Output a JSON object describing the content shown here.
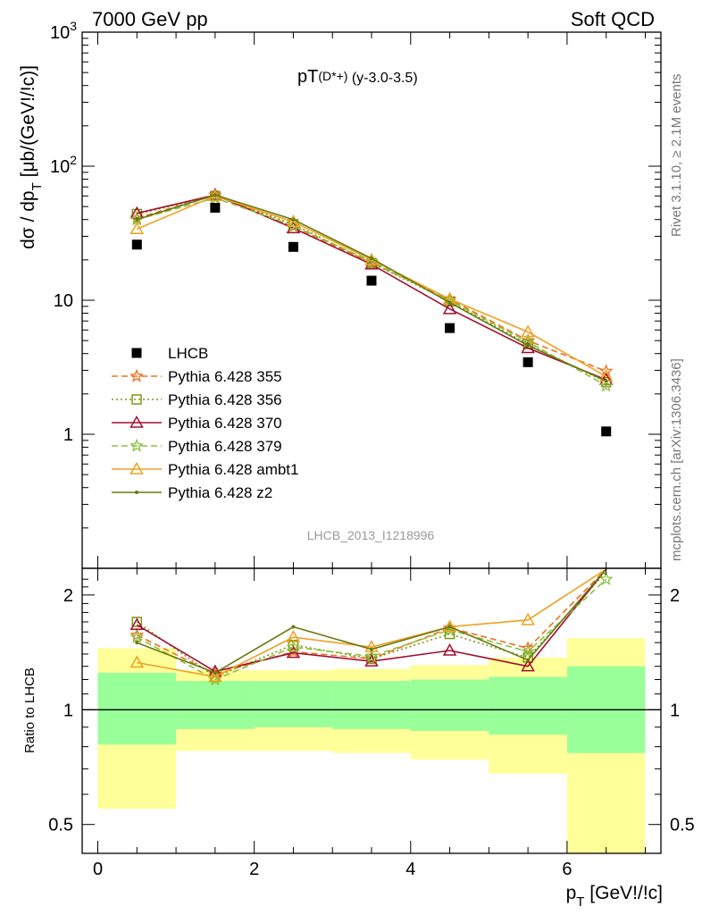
{
  "header": {
    "left": "7000 GeV pp",
    "right": "Soft QCD"
  },
  "side_labels": {
    "rivet": "Rivet 3.1.10, ≥ 2.1M events",
    "site": "mcplots.cern.ch [arXiv:1306.3436]"
  },
  "chart_data": [
    {
      "type": "scatter",
      "panel": "main",
      "title_main": "pT",
      "title_sub": "(D*+)",
      "title_tail": "(y-3.0-3.5)",
      "ylabel_main": "dσ / dp",
      "ylabel_sub": "T",
      "ylabel_tail": " [μb/(GeV!/!c)]",
      "yscale": "log",
      "ylim": [
        0.1,
        1000
      ],
      "xlim": [
        -0.2,
        7.2
      ],
      "ytick_labels": [
        {
          "value": 1,
          "label": "1"
        },
        {
          "value": 10,
          "label": "10"
        },
        {
          "value": 100,
          "base": "10",
          "exp": "2"
        },
        {
          "value": 1000,
          "base": "10",
          "exp": "3"
        }
      ],
      "watermark": "LHCB_2013_I1218996",
      "legend_position": "lower-left",
      "x": [
        0.5,
        1.5,
        2.5,
        3.5,
        4.5,
        5.5,
        6.5
      ],
      "series": [
        {
          "name": "LHCB",
          "color": "#000000",
          "marker": "square",
          "line": "none",
          "values": [
            26,
            49,
            25,
            14,
            6.2,
            3.45,
            1.05
          ]
        },
        {
          "name": "Pythia 6.428 355",
          "color": "#f07020",
          "marker": "star",
          "line": "dashed",
          "values": [
            41,
            61,
            35.5,
            19,
            10.2,
            5.0,
            2.95
          ]
        },
        {
          "name": "Pythia 6.428 356",
          "color": "#7a9a10",
          "marker": "square-open",
          "line": "dotted",
          "values": [
            44,
            60,
            37,
            19,
            9.8,
            4.7,
            2.45
          ]
        },
        {
          "name": "Pythia 6.428 370",
          "color": "#a01030",
          "marker": "triangle-open",
          "line": "solid",
          "values": [
            44.5,
            61,
            34.5,
            18.5,
            8.6,
            4.4,
            2.55
          ]
        },
        {
          "name": "Pythia 6.428 379",
          "color": "#8cc040",
          "marker": "star",
          "line": "dashed",
          "values": [
            40,
            58,
            36,
            19.5,
            9.9,
            4.9,
            2.3
          ]
        },
        {
          "name": "Pythia 6.428 ambt1",
          "color": "#f0a020",
          "marker": "triangle-open",
          "line": "solid",
          "values": [
            34,
            60,
            38.5,
            20,
            10.2,
            5.8,
            2.7
          ]
        },
        {
          "name": "Pythia 6.428 z2",
          "color": "#6a7a10",
          "marker": "dot",
          "line": "solid",
          "values": [
            40,
            61,
            40,
            20.5,
            9.6,
            4.6,
            2.5
          ]
        }
      ]
    },
    {
      "type": "line",
      "panel": "ratio",
      "ylabel": "Ratio to LHCB",
      "xlabel_main": "p",
      "xlabel_sub": "T",
      "xlabel_tail": " [GeV!/!c]",
      "yscale": "log",
      "ylim": [
        0.42,
        2.35
      ],
      "xlim": [
        -0.2,
        7.2
      ],
      "xticks": [
        0,
        2,
        4,
        6
      ],
      "yticks": [
        0.5,
        1,
        2
      ],
      "bands": [
        {
          "x0": 0,
          "x1": 1,
          "inner": [
            0.81,
            1.25
          ],
          "outer": [
            0.55,
            1.45
          ]
        },
        {
          "x0": 1,
          "x1": 2,
          "inner": [
            0.89,
            1.19
          ],
          "outer": [
            0.78,
            1.27
          ]
        },
        {
          "x0": 2,
          "x1": 3,
          "inner": [
            0.9,
            1.19
          ],
          "outer": [
            0.78,
            1.27
          ]
        },
        {
          "x0": 3,
          "x1": 4,
          "inner": [
            0.89,
            1.19
          ],
          "outer": [
            0.77,
            1.28
          ]
        },
        {
          "x0": 4,
          "x1": 5,
          "inner": [
            0.88,
            1.2
          ],
          "outer": [
            0.74,
            1.31
          ]
        },
        {
          "x0": 5,
          "x1": 6,
          "inner": [
            0.86,
            1.22
          ],
          "outer": [
            0.68,
            1.37
          ]
        },
        {
          "x0": 6,
          "x1": 7,
          "inner": [
            0.77,
            1.3
          ],
          "outer": [
            0.42,
            1.54
          ]
        }
      ],
      "x": [
        0.5,
        1.5,
        2.5,
        3.5,
        4.5,
        5.5,
        6.5
      ],
      "series": [
        {
          "name": "Pythia 6.428 355",
          "color": "#f07020",
          "marker": "star",
          "line": "dashed",
          "values": [
            1.57,
            1.24,
            1.42,
            1.36,
            1.64,
            1.45,
            2.75
          ]
        },
        {
          "name": "Pythia 6.428 356",
          "color": "#7a9a10",
          "marker": "square-open",
          "line": "dotted",
          "values": [
            1.7,
            1.22,
            1.48,
            1.36,
            1.58,
            1.37,
            2.3
          ]
        },
        {
          "name": "Pythia 6.428 370",
          "color": "#a01030",
          "marker": "triangle-open",
          "line": "solid",
          "values": [
            1.67,
            1.26,
            1.41,
            1.34,
            1.43,
            1.3,
            2.4
          ]
        },
        {
          "name": "Pythia 6.428 379",
          "color": "#8cc040",
          "marker": "star",
          "line": "dashed",
          "values": [
            1.55,
            1.2,
            1.46,
            1.38,
            1.62,
            1.42,
            2.2
          ]
        },
        {
          "name": "Pythia 6.428 ambt1",
          "color": "#f0a020",
          "marker": "triangle-open",
          "line": "solid",
          "values": [
            1.33,
            1.22,
            1.55,
            1.46,
            1.65,
            1.72,
            2.55
          ]
        },
        {
          "name": "Pythia 6.428 z2",
          "color": "#6a7a10",
          "marker": "dot",
          "line": "solid",
          "values": [
            1.5,
            1.25,
            1.65,
            1.44,
            1.65,
            1.35,
            2.4
          ]
        }
      ]
    }
  ]
}
